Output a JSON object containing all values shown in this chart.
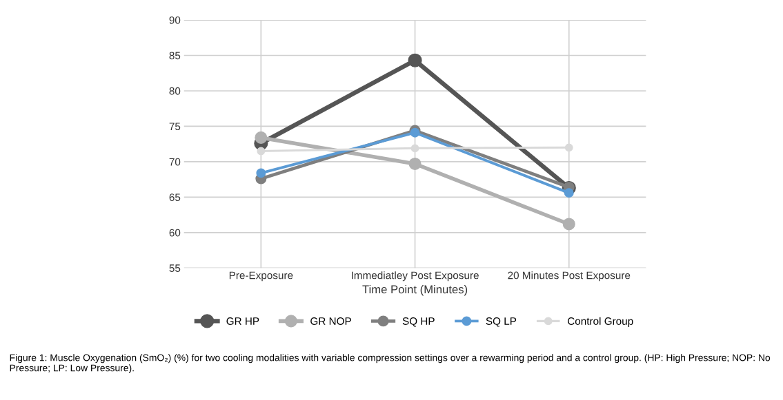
{
  "chart_data": {
    "type": "line",
    "xlabel": "Time Point (Minutes)",
    "categories": [
      "Pre-Exposure",
      "Immediatley Post Exposure",
      "20 Minutes Post Exposure"
    ],
    "series": [
      {
        "name": "GR HP",
        "color": "#555555",
        "values": [
          72.6,
          84.3,
          66.3
        ]
      },
      {
        "name": "GR NOP",
        "color": "#b0b0b0",
        "values": [
          73.4,
          69.7,
          61.2
        ]
      },
      {
        "name": "SQ HP",
        "color": "#7f7f7f",
        "values": [
          67.6,
          74.4,
          66.4
        ]
      },
      {
        "name": "SQ LP",
        "color": "#5b9bd5",
        "values": [
          68.4,
          74.1,
          65.6
        ]
      },
      {
        "name": "Control Group",
        "color": "#d9d9d9",
        "values": [
          71.5,
          71.9,
          72.0
        ]
      }
    ],
    "ylim": [
      55,
      90
    ],
    "yticks": [
      55,
      60,
      65,
      70,
      75,
      80,
      85,
      90
    ],
    "grid": true,
    "legend": "bottom",
    "marker": "circle",
    "line_style": "solid",
    "annotations": [
      "Figure 1: Muscle Oxygenation (SmO₂) (%) for two cooling modalities with variable compression settings over a rewarming period and a control group. (HP: High Pressure; NOP: No Pressure; LP: Low Pressure)."
    ]
  }
}
